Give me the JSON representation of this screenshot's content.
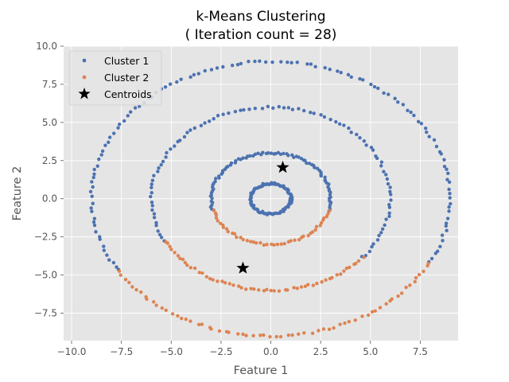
{
  "chart_data": {
    "type": "scatter",
    "title_line1": "k-Means Clustering",
    "title_line2": "( Iteration count = 28)",
    "xlabel": "Feature 1",
    "ylabel": "Feature 2",
    "xlim": [
      -10.4,
      9.4
    ],
    "ylim": [
      -9.3,
      10.0
    ],
    "xticks": [
      -10.0,
      -7.5,
      -5.0,
      -2.5,
      0.0,
      2.5,
      5.0,
      7.5
    ],
    "xtick_labels": [
      "−10.0",
      "−7.5",
      "−5.0",
      "−2.5",
      "0.0",
      "2.5",
      "5.0",
      "7.5"
    ],
    "yticks": [
      -7.5,
      -5.0,
      -2.5,
      0.0,
      2.5,
      5.0,
      7.5,
      10.0
    ],
    "ytick_labels": [
      "−7.5",
      "−5.0",
      "−2.5",
      "0.0",
      "2.5",
      "5.0",
      "7.5",
      "10.0"
    ],
    "grid": true,
    "legend_position": "top-left",
    "colors": {
      "cluster1": "#4c72b0",
      "cluster2": "#dd8452",
      "centroid": "#000000",
      "plot_background": "#e5e5e5",
      "grid": "#ffffff"
    },
    "series": [
      {
        "name": "Cluster 1",
        "marker": "circle",
        "rings": [
          {
            "center": [
              0.0,
              0.0
            ],
            "radius": 1.0,
            "arc_degrees": [
              0,
              360
            ],
            "count": 90
          },
          {
            "center": [
              0.0,
              0.0
            ],
            "radius": 3.0,
            "arc_degrees": [
              -15,
              195
            ],
            "count": 85
          },
          {
            "center": [
              0.0,
              0.0
            ],
            "radius": 6.0,
            "arc_degrees": [
              -40,
              208
            ],
            "count": 95
          },
          {
            "center": [
              0.0,
              0.0
            ],
            "radius": 9.0,
            "arc_degrees": [
              -28,
              212
            ],
            "count": 120
          }
        ]
      },
      {
        "name": "Cluster 2",
        "marker": "circle",
        "rings": [
          {
            "center": [
              0.0,
              0.0
            ],
            "radius": 3.0,
            "arc_degrees": [
              195,
              345
            ],
            "count": 45
          },
          {
            "center": [
              0.0,
              0.0
            ],
            "radius": 6.0,
            "arc_degrees": [
              208,
              320
            ],
            "count": 55
          },
          {
            "center": [
              0.0,
              0.0
            ],
            "radius": 9.0,
            "arc_degrees": [
              212,
              332
            ],
            "count": 65
          }
        ]
      }
    ],
    "centroids": {
      "name": "Centroids",
      "marker": "star",
      "points": [
        [
          0.6,
          2.05
        ],
        [
          -1.4,
          -4.55
        ]
      ]
    }
  }
}
